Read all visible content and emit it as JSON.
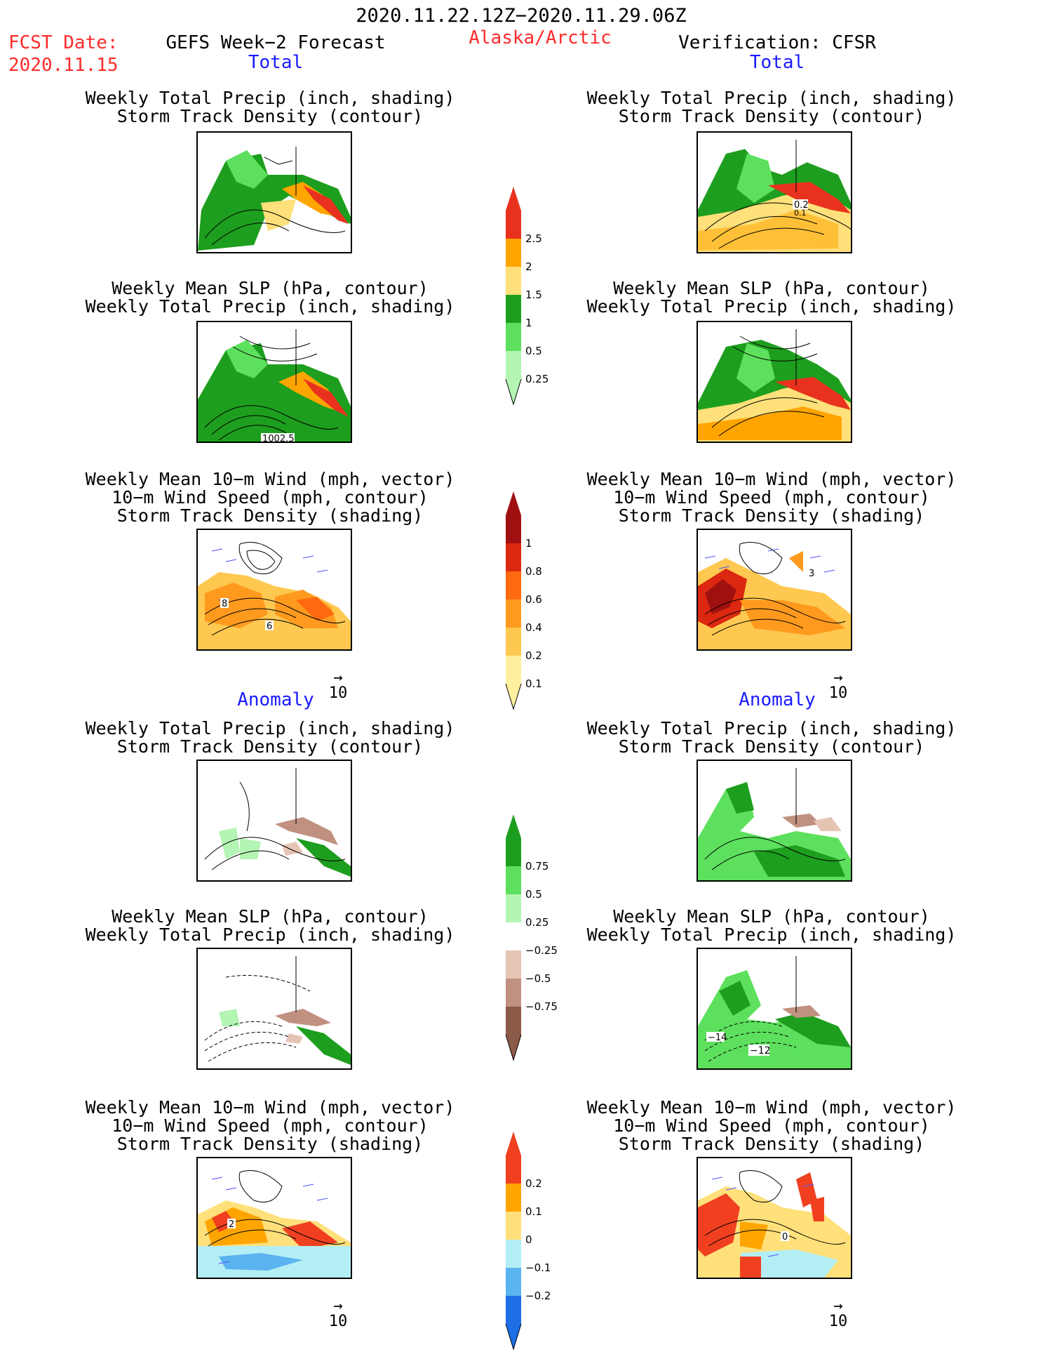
{
  "header": {
    "period": "2020.11.22.12Z−2020.11.29.06Z",
    "fcst_label": "FCST Date:",
    "fcst_date": "2020.11.15",
    "model": "GEFS Week−2 Forecast",
    "region": "Alaska/Arctic",
    "verification": "Verification: CFSR"
  },
  "sections": {
    "total": "Total",
    "anomaly": "Anomaly"
  },
  "panels": {
    "precip_track": [
      "Weekly Total Precip (inch, shading)",
      "Storm Track Density (contour)"
    ],
    "slp_precip": [
      "Weekly Mean SLP (hPa, contour)",
      "Weekly Total Precip (inch, shading)"
    ],
    "wind": [
      "Weekly Mean 10−m Wind (mph, vector)",
      "10−m Wind Speed (mph, contour)",
      "Storm Track Density (shading)"
    ]
  },
  "map_labels": {
    "left_total_slp": "1002.5",
    "left_total_wind_a": "8",
    "left_total_wind_b": "6",
    "right_total_track_a": "0.2",
    "right_total_track_b": "0.1",
    "right_total_wind": "3",
    "right_anom_slp_a": "−14",
    "right_anom_slp_b": "−12",
    "left_anom_wind": "2",
    "right_anom_wind": "0"
  },
  "vector_ref": "10",
  "colorbars": {
    "precip_total": {
      "labels": [
        "2.5",
        "2",
        "1.5",
        "1",
        "0.5",
        "0.25"
      ],
      "colors": [
        "#e8321e",
        "#ffa500",
        "#ffe07a",
        "#1e9e1e",
        "#5de05d",
        "#b4f5b4"
      ]
    },
    "track_total": {
      "labels": [
        "1",
        "0.8",
        "0.6",
        "0.4",
        "0.2",
        "0.1"
      ],
      "colors": [
        "#a01010",
        "#dc2810",
        "#ff6a10",
        "#ff9a1e",
        "#ffc850",
        "#fff0a0"
      ]
    },
    "precip_anom": {
      "labels": [
        "0.75",
        "0.5",
        "0.25",
        "−0.25",
        "−0.5",
        "−0.75"
      ],
      "colors": [
        "#1e9e1e",
        "#5de05d",
        "#b4f5b4",
        "#ffffff",
        "#e6c4b4",
        "#c09080",
        "#8c5a48"
      ]
    },
    "track_anom": {
      "labels": [
        "0.2",
        "0.1",
        "0",
        "−0.1",
        "−0.2"
      ],
      "colors": [
        "#f04020",
        "#ffa500",
        "#ffe07a",
        "#b4eef5",
        "#5ab4f0",
        "#1e6ee6"
      ]
    }
  },
  "colors": {
    "title_red": "#ff2a2a",
    "section_blue": "#1a1aff",
    "vector_blue": "#5050ff"
  }
}
